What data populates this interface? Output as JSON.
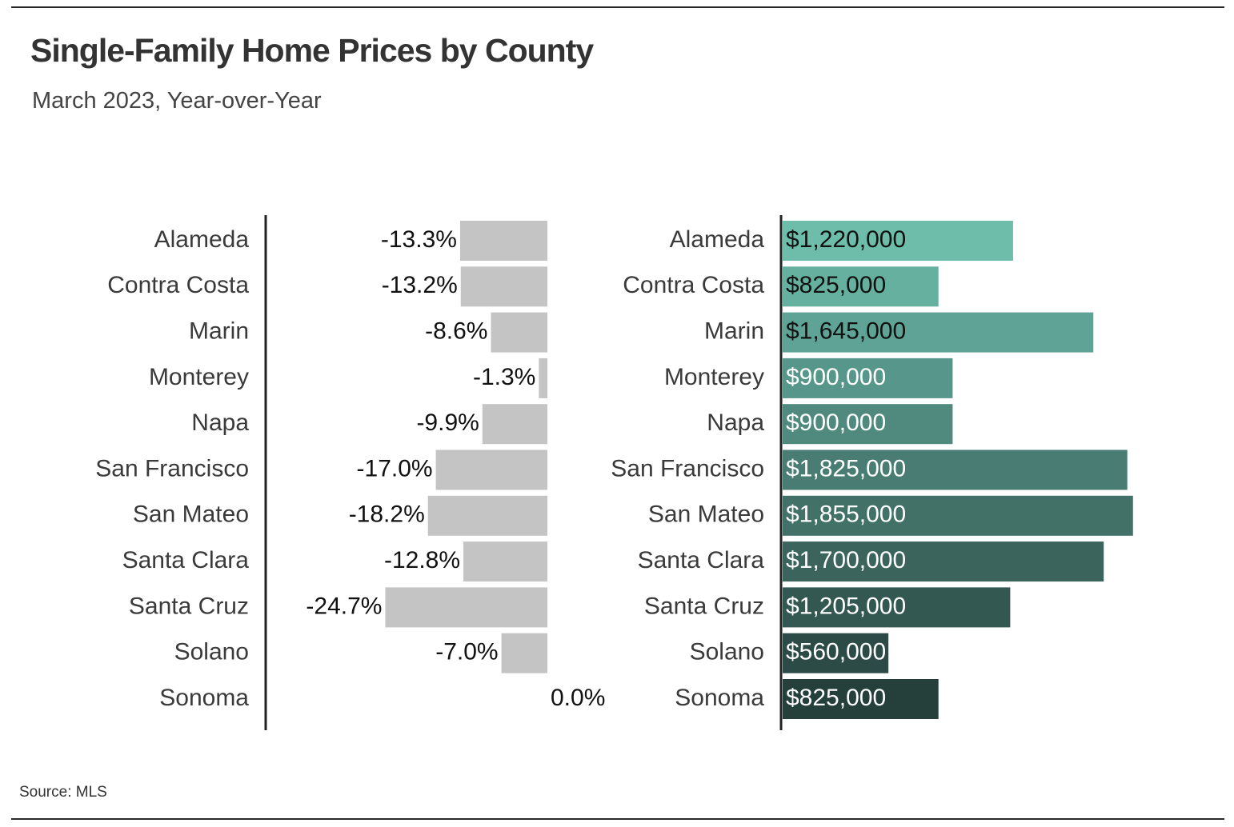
{
  "title": "Single-Family Home Prices by County",
  "subtitle": "March 2023, Year-over-Year",
  "source": "Source:  MLS",
  "chart_data": [
    {
      "type": "bar",
      "orientation": "horizontal",
      "name": "year-over-year-change",
      "categories": [
        "Alameda",
        "Contra Costa",
        "Marin",
        "Monterey",
        "Napa",
        "San Francisco",
        "San Mateo",
        "Santa Clara",
        "Santa Cruz",
        "Solano",
        "Sonoma"
      ],
      "values": [
        -13.3,
        -13.2,
        -8.6,
        -1.3,
        -9.9,
        -17.0,
        -18.2,
        -12.8,
        -24.7,
        -7.0,
        0.0
      ],
      "labels": [
        "-13.3%",
        "-13.2%",
        "-8.6%",
        "-1.3%",
        "-9.9%",
        "-17.0%",
        "-18.2%",
        "-12.8%",
        "-24.7%",
        "-7.0%",
        "0.0%"
      ],
      "xlim": [
        -25,
        0
      ],
      "bar_color": "#c4c4c4"
    },
    {
      "type": "bar",
      "orientation": "horizontal",
      "name": "median-price",
      "categories": [
        "Alameda",
        "Contra Costa",
        "Marin",
        "Monterey",
        "Napa",
        "San Francisco",
        "San Mateo",
        "Santa Clara",
        "Santa Cruz",
        "Solano",
        "Sonoma"
      ],
      "values": [
        1220000,
        825000,
        1645000,
        900000,
        900000,
        1825000,
        1855000,
        1700000,
        1205000,
        560000,
        825000
      ],
      "labels": [
        "$1,220,000",
        "$825,000",
        "$1,645,000",
        "$900,000",
        "$900,000",
        "$1,825,000",
        "$1,855,000",
        "$1,700,000",
        "$1,205,000",
        "$560,000",
        "$825,000"
      ],
      "xlim": [
        0,
        2000000
      ],
      "bar_colors": [
        "#6dbdaa",
        "#66b09f",
        "#5ea395",
        "#57968a",
        "#508a7f",
        "#497d73",
        "#427168",
        "#3a645c",
        "#335751",
        "#2c4b46",
        "#253f3a"
      ],
      "label_colors": [
        "#111111",
        "#111111",
        "#111111",
        "#ffffff",
        "#ffffff",
        "#ffffff",
        "#ffffff",
        "#ffffff",
        "#ffffff",
        "#ffffff",
        "#ffffff"
      ]
    }
  ]
}
